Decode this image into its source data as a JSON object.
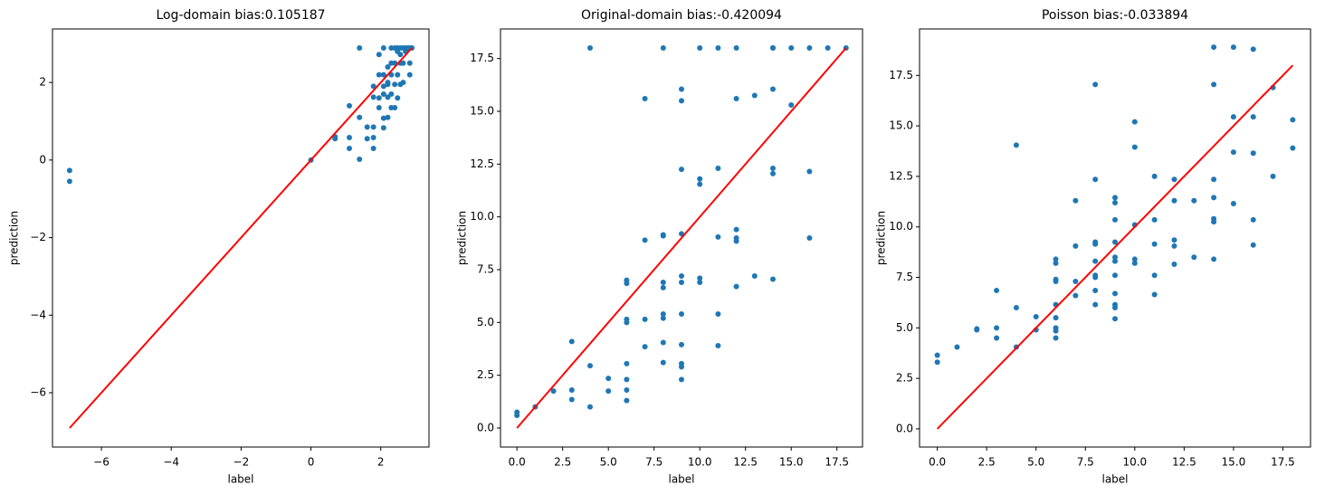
{
  "chart_data": [
    {
      "type": "scatter",
      "title": "Log-domain bias:0.105187",
      "x_label": "label",
      "y_label": "prediction",
      "color": "#1f77b4",
      "x": [
        -6.91,
        -6.91,
        0,
        0.69,
        0.69,
        1.1,
        1.1,
        1.1,
        1.39,
        1.39,
        1.39,
        1.61,
        1.61,
        1.79,
        1.79,
        1.79,
        1.79,
        1.79,
        1.95,
        1.95,
        1.95,
        1.95,
        2.08,
        2.08,
        2.08,
        2.08,
        2.08,
        2.08,
        2.2,
        2.2,
        2.2,
        2.2,
        2.2,
        2.3,
        2.3,
        2.3,
        2.3,
        2.3,
        2.4,
        2.4,
        2.4,
        2.4,
        2.48,
        2.48,
        2.48,
        2.48,
        2.56,
        2.56,
        2.56,
        2.56,
        2.64,
        2.64,
        2.64,
        2.71,
        2.71,
        2.77,
        2.83,
        2.83,
        2.83,
        2.89
      ],
      "values": [
        -0.27,
        -0.55,
        0,
        0.55,
        0.6,
        1.4,
        0.58,
        0.3,
        2.89,
        1.1,
        0.02,
        0.85,
        0.55,
        0.3,
        0.58,
        0.85,
        1.62,
        1.9,
        1.35,
        2.2,
        2.72,
        1.6,
        2.2,
        1.08,
        1.7,
        0.83,
        2.89,
        1.9,
        1.62,
        1.1,
        2.0,
        1.95,
        2.4,
        2.89,
        2.5,
        1.35,
        1.7,
        2.2,
        2.89,
        2.5,
        1.95,
        1.35,
        2.89,
        2.8,
        2.2,
        1.6,
        2.89,
        2.72,
        1.95,
        2.5,
        2.89,
        2.5,
        2.0,
        2.89,
        2.8,
        2.89,
        2.89,
        2.2,
        2.5,
        2.89
      ],
      "line": {
        "x": [
          -6.91,
          2.89
        ],
        "values": [
          -6.91,
          2.89
        ],
        "color": "#ff0000"
      },
      "xlim": [
        -7.4,
        3.38
      ],
      "ylim": [
        -7.4,
        3.38
      ],
      "xticks": [
        {
          "value": -6,
          "label": "−6"
        },
        {
          "value": -4,
          "label": "−4"
        },
        {
          "value": -2,
          "label": "−2"
        },
        0,
        2
      ],
      "yticks": [
        {
          "value": -6,
          "label": "−6"
        },
        {
          "value": -4,
          "label": "−4"
        },
        {
          "value": -2,
          "label": "−2"
        },
        0,
        2
      ]
    },
    {
      "type": "scatter",
      "title": "Original-domain bias:-0.420094",
      "x_label": "label",
      "y_label": "prediction",
      "color": "#1f77b4",
      "x": [
        0,
        0,
        1,
        2,
        3,
        3,
        3,
        4,
        4,
        4,
        5,
        5,
        6,
        6,
        6,
        6,
        6,
        6,
        6,
        6,
        7,
        7,
        7,
        7,
        8,
        8,
        8,
        8,
        8,
        8,
        8,
        8,
        8,
        9,
        9,
        9,
        9,
        9,
        9,
        9,
        9,
        9,
        9,
        9,
        10,
        10,
        10,
        10,
        10,
        11,
        11,
        11,
        11,
        11,
        12,
        12,
        12,
        12,
        12,
        12,
        13,
        13,
        14,
        14,
        14,
        14,
        14,
        14,
        15,
        15,
        16,
        16,
        16,
        17,
        18
      ],
      "values": [
        0.75,
        0.6,
        1.0,
        1.75,
        4.1,
        1.8,
        1.35,
        18,
        2.95,
        1.0,
        2.35,
        1.75,
        7.0,
        6.85,
        5.15,
        5.0,
        3.05,
        2.3,
        1.8,
        1.3,
        15.6,
        8.9,
        5.15,
        3.85,
        18,
        9.15,
        9.1,
        6.9,
        6.65,
        5.4,
        5.2,
        4.05,
        3.1,
        16.05,
        15.5,
        12.25,
        9.2,
        7.2,
        6.9,
        5.4,
        3.95,
        3.05,
        2.9,
        2.3,
        18,
        11.8,
        11.55,
        7.1,
        6.9,
        18,
        12.3,
        9.05,
        5.4,
        3.9,
        18,
        15.6,
        9.4,
        9.0,
        8.85,
        6.7,
        15.75,
        7.2,
        18,
        18,
        16.05,
        12.3,
        12.05,
        7.05,
        18,
        15.3,
        18,
        12.15,
        9.0,
        18,
        18
      ],
      "line": {
        "x": [
          0,
          18
        ],
        "values": [
          0,
          18
        ],
        "color": "#ff0000"
      },
      "xlim": [
        -0.9,
        18.9
      ],
      "ylim": [
        -0.9,
        18.9
      ],
      "xticks": [
        {
          "value": 0,
          "label": "0.0"
        },
        2.5,
        {
          "value": 5,
          "label": "5.0"
        },
        7.5,
        {
          "value": 10,
          "label": "10.0"
        },
        12.5,
        {
          "value": 15,
          "label": "15.0"
        },
        17.5
      ],
      "yticks": [
        {
          "value": 0,
          "label": "0.0"
        },
        2.5,
        {
          "value": 5,
          "label": "5.0"
        },
        7.5,
        {
          "value": 10,
          "label": "10.0"
        },
        12.5,
        {
          "value": 15,
          "label": "15.0"
        },
        17.5
      ]
    },
    {
      "type": "scatter",
      "title": "Poisson bias:-0.033894",
      "x_label": "label",
      "y_label": "prediction",
      "color": "#1f77b4",
      "x": [
        0,
        0,
        1,
        2,
        2,
        3,
        3,
        3,
        4,
        4,
        4,
        5,
        5,
        6,
        6,
        6,
        6,
        6,
        6,
        6,
        6,
        6,
        7,
        7,
        7,
        7,
        8,
        8,
        8,
        8,
        8,
        8,
        8,
        8,
        8,
        9,
        9,
        9,
        9,
        9,
        9,
        9,
        9,
        9,
        9,
        9,
        10,
        10,
        10,
        10,
        10,
        11,
        11,
        11,
        11,
        11,
        12,
        12,
        12,
        12,
        12,
        13,
        13,
        14,
        14,
        14,
        14,
        14,
        14,
        14,
        15,
        15,
        15,
        15,
        16,
        16,
        16,
        16,
        16,
        17,
        17,
        18,
        18
      ],
      "values": [
        3.65,
        3.3,
        4.05,
        4.95,
        4.9,
        6.85,
        5.0,
        4.5,
        14.05,
        6.0,
        4.05,
        5.55,
        4.9,
        8.4,
        8.2,
        7.4,
        7.3,
        6.15,
        5.5,
        5.0,
        4.85,
        4.5,
        11.3,
        9.05,
        7.3,
        6.6,
        17.05,
        12.35,
        9.25,
        9.15,
        8.3,
        7.6,
        7.5,
        6.85,
        6.15,
        11.45,
        11.2,
        10.35,
        9.25,
        8.5,
        8.3,
        7.6,
        6.7,
        6.15,
        6.0,
        5.45,
        15.2,
        13.95,
        10.1,
        8.4,
        8.2,
        12.5,
        10.35,
        9.15,
        7.6,
        6.65,
        12.35,
        11.3,
        9.35,
        9.05,
        8.15,
        11.3,
        8.5,
        18.9,
        17.05,
        12.35,
        11.45,
        10.4,
        10.25,
        8.4,
        18.9,
        15.45,
        13.7,
        11.15,
        18.8,
        15.45,
        13.65,
        10.35,
        9.1,
        16.9,
        12.5,
        15.3,
        13.9
      ],
      "line": {
        "x": [
          0,
          18
        ],
        "values": [
          0,
          18
        ],
        "color": "#ff0000"
      },
      "xlim": [
        -0.9,
        18.9
      ],
      "ylim": [
        -0.9,
        19.8
      ],
      "xticks": [
        {
          "value": 0,
          "label": "0.0"
        },
        2.5,
        {
          "value": 5,
          "label": "5.0"
        },
        7.5,
        {
          "value": 10,
          "label": "10.0"
        },
        12.5,
        {
          "value": 15,
          "label": "15.0"
        },
        17.5
      ],
      "yticks": [
        {
          "value": 0,
          "label": "0.0"
        },
        2.5,
        {
          "value": 5,
          "label": "5.0"
        },
        7.5,
        {
          "value": 10,
          "label": "10.0"
        },
        12.5,
        {
          "value": 15,
          "label": "15.0"
        },
        17.5
      ]
    }
  ]
}
